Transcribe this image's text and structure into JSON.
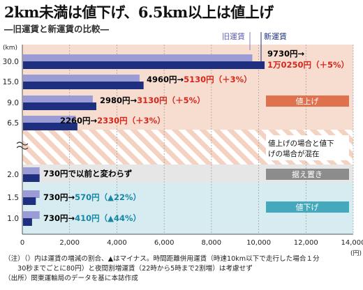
{
  "header": {
    "title": "2km未満は値下げ、6.5km以上は値上げ",
    "subtitle": "―旧運賃と新運賃の比較―"
  },
  "legend": {
    "old": "旧運賃",
    "new": "新運賃"
  },
  "colors": {
    "old_bar": "#9b9bd6",
    "new_bar": "#1d2f7e",
    "zone_up": "#f7ddd0",
    "zone_mixed_a": "#f4d2c2",
    "zone_mixed_b": "#ffffff",
    "zone_same": "#e6e6e6",
    "zone_down": "#d6ecf1",
    "badge_up": "#e0714e",
    "badge_same": "#8c8c8c",
    "badge_down": "#45a9bd",
    "red_text": "#d7261c",
    "teal_text": "#1687a7"
  },
  "zones": {
    "up_label": "値上げ",
    "mixed_label_1": "値上げの場合と値下",
    "mixed_label_2": "げの場合が混在",
    "same_label": "据え置き",
    "down_label": "値下げ"
  },
  "annotations": {
    "r1_prefix": "9730円→",
    "r1_new": "1万0250円",
    "r1_pct": "（＋5%）",
    "r2_prefix": "4960円→",
    "r2_new": "5130円",
    "r2_pct": "（＋3%）",
    "r3_prefix": "2980円→",
    "r3_new": "3130円",
    "r3_pct": "（＋5%）",
    "r4_prefix": "2260円→",
    "r4_new": "2330円",
    "r4_pct": "（＋3%）",
    "r5_text": "730円で以前と変わらず",
    "r6_prefix": "730円→",
    "r6_new": "570円",
    "r6_pct": "（▲22%）",
    "r7_prefix": "730円→",
    "r7_new": "410円",
    "r7_pct": "（▲44%）"
  },
  "notes": [
    "（注）（）内は運賃の増減の割合、▲はマイナス。時間距離併用運賃（時速10km以下で走行した場合１分",
    "　　30秒までごとに80円）と夜間割増運賃（22時から5時まで2割増）は考慮せず",
    "（出所）関東運輸局のデータを基に本誌作成"
  ],
  "chart_data": {
    "type": "bar",
    "orientation": "horizontal",
    "ylabel": "(km)",
    "xlabel": "(円)",
    "categories": [
      "30.0",
      "15.0",
      "9.0",
      "6.5",
      "2.0",
      "1.5",
      "1.0"
    ],
    "series": [
      {
        "name": "旧運賃",
        "values": [
          9730,
          4960,
          2980,
          2260,
          730,
          730,
          730
        ]
      },
      {
        "name": "新運賃",
        "values": [
          10250,
          5130,
          3130,
          2330,
          730,
          570,
          410
        ]
      }
    ],
    "xlim": [
      0,
      14000
    ],
    "xticks": [
      0,
      2000,
      4000,
      6000,
      8000,
      10000,
      12000,
      14000
    ],
    "xtick_labels": [
      "0",
      "2,000",
      "4,000",
      "6,000",
      "8,000",
      "10,000",
      "12,000",
      "14,000"
    ],
    "grid": "vertical",
    "legend": "top-right"
  }
}
